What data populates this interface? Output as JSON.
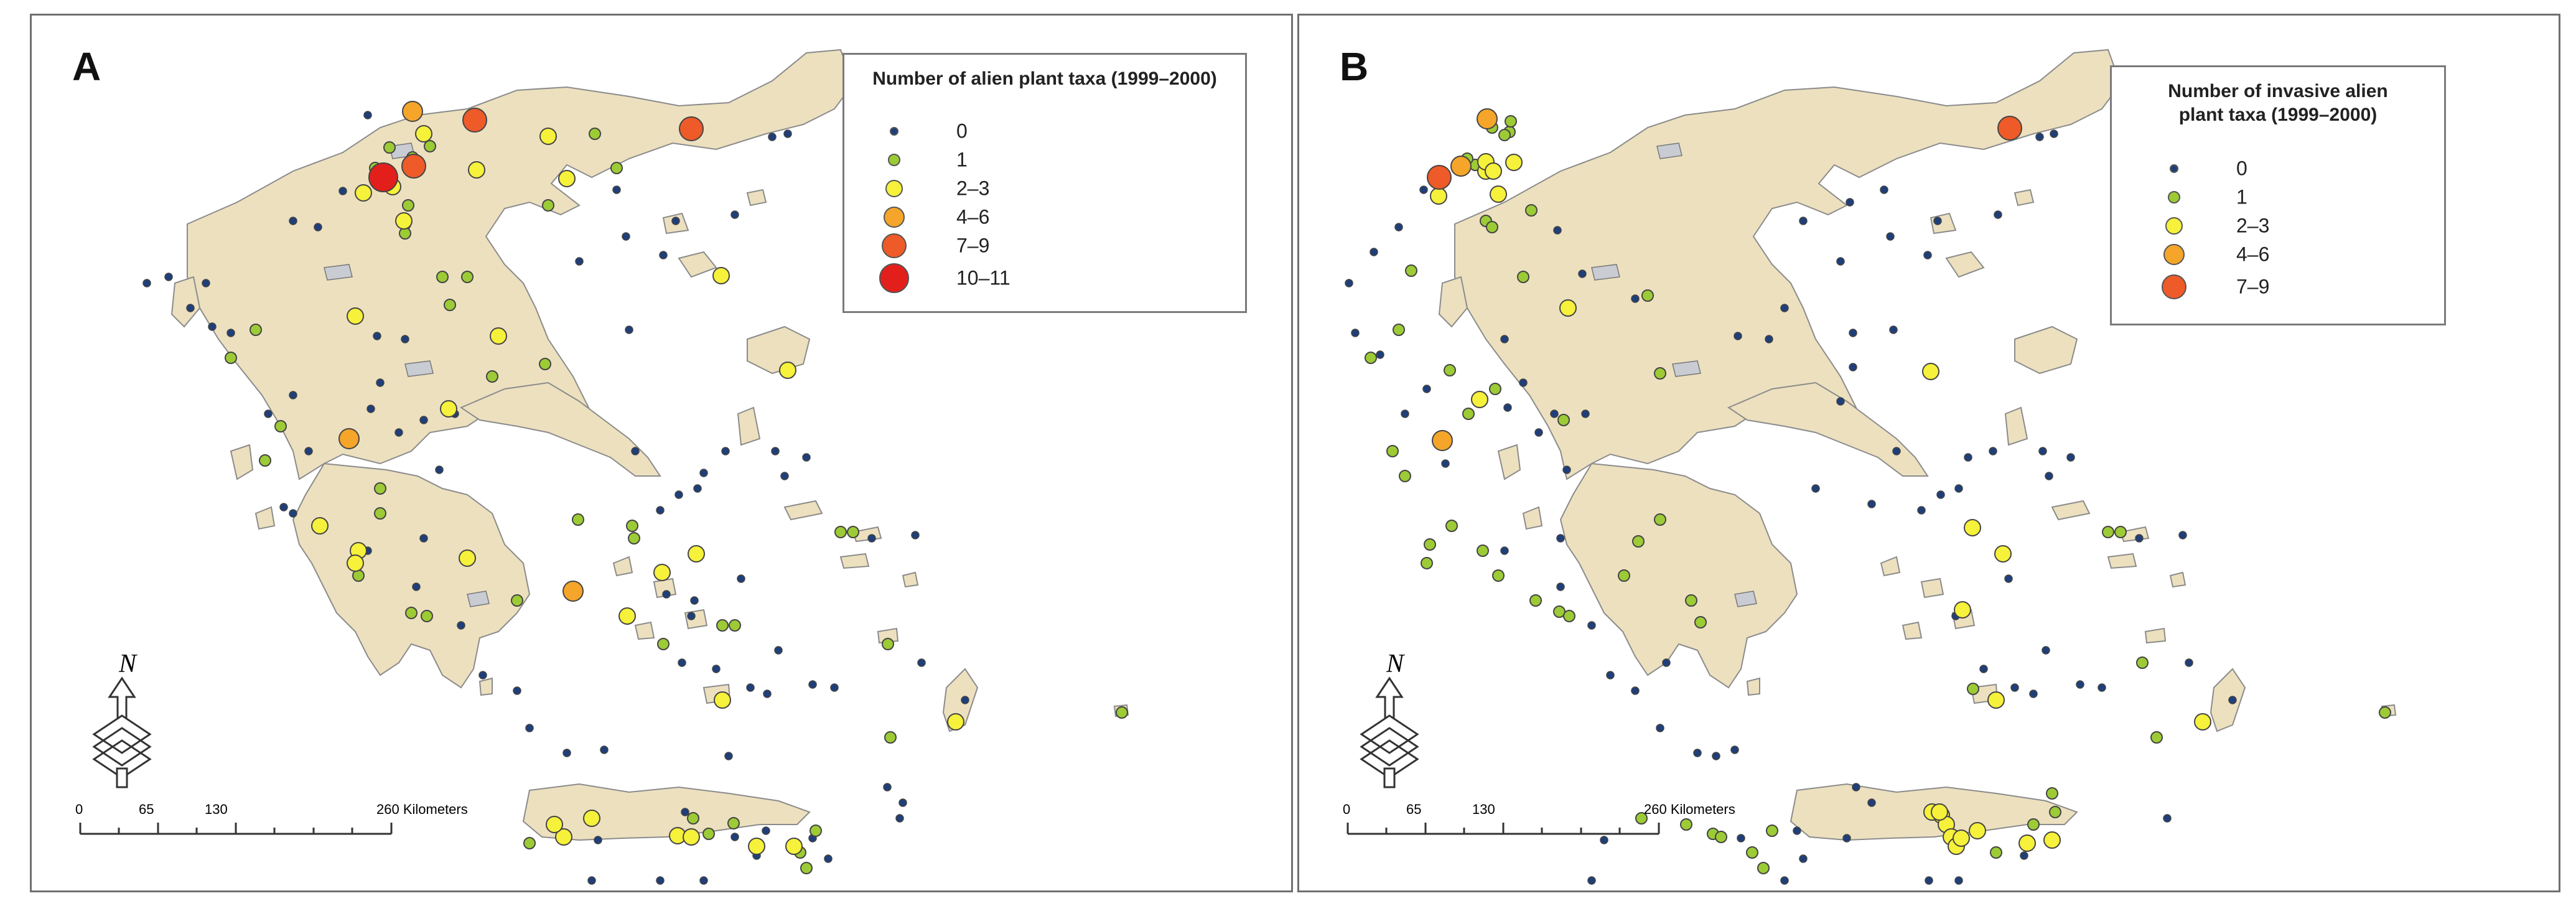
{
  "colors": {
    "land": "#ece0bf",
    "land_stroke": "#8b8b8b",
    "lake": "#c9ccd2",
    "class_0": "#1f3f7a",
    "class_1": "#9ccb35",
    "class_2_3": "#f6f13a",
    "class_4_6": "#f4a52a",
    "class_7_9": "#ee5a28",
    "class_10_11": "#e31f1c"
  },
  "panels": [
    {
      "letter": "A",
      "legend_title": "Number of alien plant taxa (1999–2000)",
      "legend": [
        {
          "label": "0",
          "cls": "0"
        },
        {
          "label": "1",
          "cls": "1"
        },
        {
          "label": "2–3",
          "cls": "2"
        },
        {
          "label": "4–6",
          "cls": "4"
        },
        {
          "label": "7–9",
          "cls": "7"
        },
        {
          "label": "10–11",
          "cls": "10"
        }
      ]
    },
    {
      "letter": "B",
      "legend_title": "Number of invasive alien plant taxa (1999–2000)",
      "legend": [
        {
          "label": "0",
          "cls": "0"
        },
        {
          "label": "1",
          "cls": "1"
        },
        {
          "label": "2–3",
          "cls": "2"
        },
        {
          "label": "4–6",
          "cls": "4"
        },
        {
          "label": "7–9",
          "cls": "7"
        }
      ]
    }
  ],
  "north_label": "N",
  "scale": {
    "ticks": [
      "0",
      "65",
      "130",
      "260 Kilometers"
    ]
  },
  "sites": {
    "a": [
      [
        "4",
        612,
        154
      ],
      [
        "10",
        565,
        260
      ],
      [
        "7",
        614,
        242
      ],
      [
        "7",
        712,
        168
      ],
      [
        "7",
        1060,
        182
      ],
      [
        "2",
        630,
        190
      ],
      [
        "2",
        580,
        275
      ],
      [
        "2",
        533,
        285
      ],
      [
        "1",
        575,
        212
      ],
      [
        "1",
        640,
        210
      ],
      [
        "1",
        612,
        228
      ],
      [
        "1",
        605,
        305
      ],
      [
        "1",
        600,
        335
      ],
      [
        "1",
        552,
        245
      ],
      [
        "2",
        598,
        330
      ],
      [
        "2",
        715,
        248
      ],
      [
        "2",
        830,
        194
      ],
      [
        "2",
        860,
        262
      ],
      [
        "2",
        520,
        483
      ],
      [
        "2",
        750,
        515
      ],
      [
        "2",
        670,
        632
      ],
      [
        "4",
        510,
        680
      ],
      [
        "4",
        870,
        925
      ],
      [
        "2",
        463,
        820
      ],
      [
        "2",
        525,
        860
      ],
      [
        "2",
        520,
        880
      ],
      [
        "2",
        700,
        872
      ],
      [
        "2",
        1013,
        895
      ],
      [
        "2",
        1068,
        865
      ],
      [
        "2",
        1108,
        418
      ],
      [
        "2",
        1215,
        570
      ],
      [
        "2",
        957,
        965
      ],
      [
        "2",
        1110,
        1100
      ],
      [
        "2",
        1485,
        1135
      ],
      [
        "2",
        900,
        1290
      ],
      [
        "2",
        1038,
        1318
      ],
      [
        "2",
        1060,
        1320
      ],
      [
        "2",
        1165,
        1335
      ],
      [
        "2",
        1225,
        1335
      ],
      [
        "2",
        855,
        1320
      ],
      [
        "2",
        840,
        1300
      ],
      [
        "1",
        905,
        190
      ],
      [
        "1",
        360,
        505
      ],
      [
        "1",
        320,
        550
      ],
      [
        "1",
        600,
        350
      ],
      [
        "1",
        660,
        420
      ],
      [
        "1",
        400,
        660
      ],
      [
        "1",
        375,
        715
      ],
      [
        "1",
        560,
        760
      ],
      [
        "1",
        560,
        800
      ],
      [
        "1",
        525,
        900
      ],
      [
        "1",
        610,
        960
      ],
      [
        "1",
        635,
        965
      ],
      [
        "1",
        780,
        940
      ],
      [
        "1",
        878,
        810
      ],
      [
        "1",
        968,
        840
      ],
      [
        "1",
        965,
        820
      ],
      [
        "1",
        1015,
        1010
      ],
      [
        "1",
        1110,
        980
      ],
      [
        "1",
        1130,
        980
      ],
      [
        "1",
        1300,
        830
      ],
      [
        "1",
        1320,
        830
      ],
      [
        "1",
        1376,
        1010
      ],
      [
        "1",
        1380,
        1160
      ],
      [
        "1",
        1752,
        1120
      ],
      [
        "1",
        1063,
        1290
      ],
      [
        "1",
        1128,
        1298
      ],
      [
        "1",
        1235,
        1345
      ],
      [
        "1",
        1245,
        1370
      ],
      [
        "1",
        1260,
        1310
      ],
      [
        "1",
        800,
        1330
      ],
      [
        "1",
        1088,
        1315
      ],
      [
        "1",
        940,
        245
      ],
      [
        "1",
        830,
        305
      ],
      [
        "1",
        740,
        580
      ],
      [
        "1",
        825,
        560
      ],
      [
        "1",
        672,
        465
      ],
      [
        "1",
        700,
        420
      ],
      [
        "0",
        540,
        160
      ],
      [
        "0",
        500,
        282
      ],
      [
        "0",
        460,
        340
      ],
      [
        "0",
        420,
        330
      ],
      [
        "0",
        290,
        500
      ],
      [
        "0",
        320,
        510
      ],
      [
        "0",
        280,
        430
      ],
      [
        "0",
        380,
        640
      ],
      [
        "0",
        420,
        610
      ],
      [
        "0",
        555,
        515
      ],
      [
        "0",
        600,
        520
      ],
      [
        "0",
        560,
        590
      ],
      [
        "0",
        545,
        632
      ],
      [
        "0",
        630,
        650
      ],
      [
        "0",
        680,
        640
      ],
      [
        "0",
        590,
        670
      ],
      [
        "0",
        655,
        730
      ],
      [
        "0",
        445,
        700
      ],
      [
        "0",
        540,
        860
      ],
      [
        "0",
        630,
        840
      ],
      [
        "0",
        618,
        918
      ],
      [
        "0",
        690,
        980
      ],
      [
        "0",
        725,
        1060
      ],
      [
        "0",
        780,
        1085
      ],
      [
        "0",
        800,
        1145
      ],
      [
        "0",
        860,
        1185
      ],
      [
        "0",
        920,
        1180
      ],
      [
        "0",
        1045,
        1040
      ],
      [
        "0",
        1120,
        1190
      ],
      [
        "0",
        1130,
        1320
      ],
      [
        "0",
        1180,
        1310
      ],
      [
        "0",
        1255,
        1322
      ],
      [
        "0",
        1400,
        1265
      ],
      [
        "0",
        1375,
        1240
      ],
      [
        "0",
        1190,
        195
      ],
      [
        "0",
        1215,
        190
      ],
      [
        "0",
        1130,
        320
      ],
      [
        "0",
        1035,
        330
      ],
      [
        "0",
        1015,
        385
      ],
      [
        "0",
        940,
        280
      ],
      [
        "0",
        955,
        355
      ],
      [
        "0",
        880,
        395
      ],
      [
        "0",
        960,
        505
      ],
      [
        "0",
        970,
        700
      ],
      [
        "0",
        1010,
        795
      ],
      [
        "0",
        1040,
        770
      ],
      [
        "0",
        1070,
        760
      ],
      [
        "0",
        1195,
        700
      ],
      [
        "0",
        1245,
        710
      ],
      [
        "0",
        1210,
        740
      ],
      [
        "0",
        1060,
        965
      ],
      [
        "0",
        1100,
        1050
      ],
      [
        "0",
        1155,
        1080
      ],
      [
        "0",
        1182,
        1090
      ],
      [
        "0",
        1200,
        1020
      ],
      [
        "0",
        1255,
        1075
      ],
      [
        "0",
        1290,
        1080
      ],
      [
        "0",
        1350,
        840
      ],
      [
        "0",
        1420,
        835
      ],
      [
        "0",
        1430,
        1040
      ],
      [
        "0",
        1500,
        1100
      ],
      [
        "0",
        1395,
        1290
      ],
      [
        "0",
        910,
        1325
      ],
      [
        "0",
        900,
        1390
      ],
      [
        "0",
        1010,
        1390
      ],
      [
        "0",
        1080,
        1390
      ],
      [
        "0",
        1165,
        1350
      ],
      [
        "0",
        1050,
        1280
      ],
      [
        "0",
        1280,
        1355
      ],
      [
        "0",
        405,
        790
      ],
      [
        "0",
        420,
        800
      ],
      [
        "0",
        220,
        420
      ],
      [
        "0",
        255,
        470
      ],
      [
        "0",
        185,
        430
      ],
      [
        "0",
        1115,
        700
      ],
      [
        "0",
        1080,
        735
      ],
      [
        "0",
        1065,
        940
      ],
      [
        "0",
        1020,
        930
      ],
      [
        "0",
        1140,
        905
      ]
    ],
    "b": [
      [
        "7",
        1142,
        181
      ],
      [
        "7",
        225,
        260
      ],
      [
        "4",
        260,
        242
      ],
      [
        "4",
        302,
        166
      ],
      [
        "4",
        230,
        683
      ],
      [
        "2",
        300,
        250
      ],
      [
        "2",
        224,
        290
      ],
      [
        "2",
        300,
        235
      ],
      [
        "2",
        312,
        250
      ],
      [
        "2",
        320,
        287
      ],
      [
        "2",
        432,
        470
      ],
      [
        "2",
        290,
        617
      ],
      [
        "2",
        1015,
        572
      ],
      [
        "2",
        1082,
        823
      ],
      [
        "2",
        1131,
        865
      ],
      [
        "2",
        1120,
        1100
      ],
      [
        "2",
        1452,
        1135
      ],
      [
        "2",
        1066,
        955
      ],
      [
        "2",
        345,
        236
      ],
      [
        "2",
        1032,
        1285
      ],
      [
        "2",
        1040,
        1300
      ],
      [
        "2",
        1048,
        1320
      ],
      [
        "2",
        1056,
        1335
      ],
      [
        "2",
        1064,
        1322
      ],
      [
        "2",
        1090,
        1310
      ],
      [
        "2",
        1210,
        1325
      ],
      [
        "2",
        1017,
        1280
      ],
      [
        "2",
        1029,
        1280
      ],
      [
        "2",
        1170,
        1330
      ],
      [
        "1",
        310,
        180
      ],
      [
        "1",
        338,
        187
      ],
      [
        "1",
        340,
        170
      ],
      [
        "1",
        283,
        240
      ],
      [
        "1",
        330,
        192
      ],
      [
        "1",
        270,
        230
      ],
      [
        "1",
        373,
        313
      ],
      [
        "1",
        180,
        410
      ],
      [
        "1",
        160,
        505
      ],
      [
        "1",
        115,
        550
      ],
      [
        "1",
        300,
        330
      ],
      [
        "1",
        310,
        340
      ],
      [
        "1",
        360,
        420
      ],
      [
        "1",
        425,
        650
      ],
      [
        "1",
        560,
        450
      ],
      [
        "1",
        580,
        575
      ],
      [
        "1",
        150,
        700
      ],
      [
        "1",
        170,
        740
      ],
      [
        "1",
        245,
        820
      ],
      [
        "1",
        210,
        850
      ],
      [
        "1",
        205,
        880
      ],
      [
        "1",
        295,
        860
      ],
      [
        "1",
        320,
        900
      ],
      [
        "1",
        380,
        940
      ],
      [
        "1",
        418,
        958
      ],
      [
        "1",
        434,
        965
      ],
      [
        "1",
        522,
        900
      ],
      [
        "1",
        580,
        810
      ],
      [
        "1",
        545,
        845
      ],
      [
        "1",
        630,
        940
      ],
      [
        "1",
        645,
        975
      ],
      [
        "1",
        550,
        1290
      ],
      [
        "1",
        622,
        1300
      ],
      [
        "1",
        665,
        1315
      ],
      [
        "1",
        678,
        1320
      ],
      [
        "1",
        728,
        1345
      ],
      [
        "1",
        746,
        1370
      ],
      [
        "1",
        760,
        1310
      ],
      [
        "1",
        1083,
        1082
      ],
      [
        "1",
        1210,
        1250
      ],
      [
        "1",
        1300,
        830
      ],
      [
        "1",
        1320,
        830
      ],
      [
        "1",
        1355,
        1040
      ],
      [
        "1",
        1378,
        1160
      ],
      [
        "1",
        1745,
        1120
      ],
      [
        "1",
        1120,
        1345
      ],
      [
        "1",
        1180,
        1300
      ],
      [
        "1",
        1215,
        1280
      ],
      [
        "1",
        315,
        600
      ],
      [
        "1",
        272,
        640
      ],
      [
        "1",
        242,
        570
      ],
      [
        "0",
        200,
        280
      ],
      [
        "0",
        160,
        340
      ],
      [
        "0",
        120,
        380
      ],
      [
        "0",
        90,
        510
      ],
      [
        "0",
        130,
        545
      ],
      [
        "0",
        80,
        430
      ],
      [
        "0",
        170,
        640
      ],
      [
        "0",
        205,
        600
      ],
      [
        "0",
        330,
        520
      ],
      [
        "0",
        360,
        590
      ],
      [
        "0",
        335,
        630
      ],
      [
        "0",
        410,
        640
      ],
      [
        "0",
        460,
        640
      ],
      [
        "0",
        385,
        670
      ],
      [
        "0",
        430,
        730
      ],
      [
        "0",
        235,
        720
      ],
      [
        "0",
        330,
        860
      ],
      [
        "0",
        420,
        840
      ],
      [
        "0",
        420,
        918
      ],
      [
        "0",
        470,
        980
      ],
      [
        "0",
        500,
        1060
      ],
      [
        "0",
        540,
        1085
      ],
      [
        "0",
        580,
        1145
      ],
      [
        "0",
        640,
        1185
      ],
      [
        "0",
        700,
        1180
      ],
      [
        "0",
        590,
        1040
      ],
      [
        "0",
        670,
        1190
      ],
      [
        "0",
        710,
        1322
      ],
      [
        "0",
        800,
        1310
      ],
      [
        "0",
        880,
        1322
      ],
      [
        "0",
        920,
        1265
      ],
      [
        "0",
        895,
        1240
      ],
      [
        "0",
        810,
        1355
      ],
      [
        "0",
        1060,
        1390
      ],
      [
        "0",
        780,
        1390
      ],
      [
        "0",
        470,
        1390
      ],
      [
        "0",
        490,
        1325
      ],
      [
        "0",
        1190,
        195
      ],
      [
        "0",
        1213,
        190
      ],
      [
        "0",
        1123,
        320
      ],
      [
        "0",
        1026,
        330
      ],
      [
        "0",
        1010,
        385
      ],
      [
        "0",
        940,
        280
      ],
      [
        "0",
        950,
        355
      ],
      [
        "0",
        870,
        395
      ],
      [
        "0",
        955,
        505
      ],
      [
        "0",
        960,
        700
      ],
      [
        "0",
        1000,
        795
      ],
      [
        "0",
        1031,
        770
      ],
      [
        "0",
        1060,
        760
      ],
      [
        "0",
        1195,
        700
      ],
      [
        "0",
        1240,
        710
      ],
      [
        "0",
        1205,
        740
      ],
      [
        "0",
        1055,
        965
      ],
      [
        "0",
        1100,
        1050
      ],
      [
        "0",
        1150,
        1080
      ],
      [
        "0",
        1180,
        1090
      ],
      [
        "0",
        1200,
        1020
      ],
      [
        "0",
        1255,
        1075
      ],
      [
        "0",
        1290,
        1080
      ],
      [
        "0",
        1350,
        840
      ],
      [
        "0",
        1420,
        835
      ],
      [
        "0",
        1430,
        1040
      ],
      [
        "0",
        1500,
        1100
      ],
      [
        "0",
        1395,
        1290
      ],
      [
        "0",
        1012,
        1390
      ],
      [
        "0",
        1165,
        1350
      ],
      [
        "0",
        890,
        510
      ],
      [
        "0",
        870,
        620
      ],
      [
        "0",
        920,
        785
      ],
      [
        "0",
        890,
        565
      ],
      [
        "0",
        830,
        760
      ],
      [
        "0",
        780,
        470
      ],
      [
        "0",
        755,
        520
      ],
      [
        "0",
        705,
        515
      ],
      [
        "0",
        540,
        455
      ],
      [
        "0",
        455,
        415
      ],
      [
        "0",
        415,
        345
      ],
      [
        "0",
        885,
        300
      ],
      [
        "0",
        810,
        330
      ],
      [
        "0",
        1075,
        710
      ],
      [
        "0",
        1115,
        700
      ],
      [
        "0",
        1140,
        905
      ]
    ]
  }
}
